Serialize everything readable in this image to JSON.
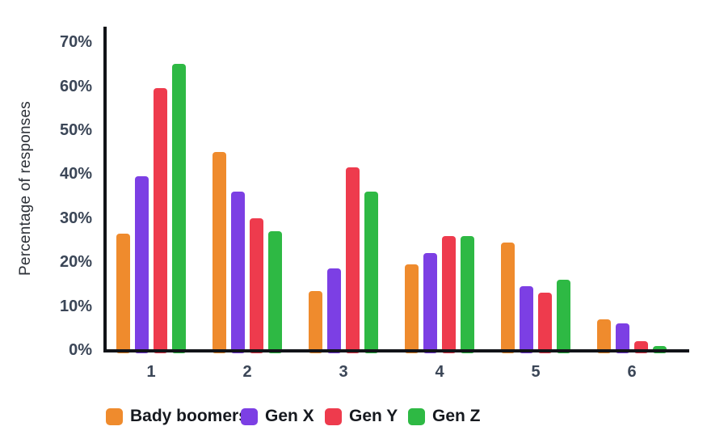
{
  "chart_data": {
    "type": "bar",
    "title": "",
    "xlabel": "",
    "ylabel": "Percentage of responses",
    "categories": [
      "1",
      "2",
      "3",
      "4",
      "5",
      "6"
    ],
    "series": [
      {
        "name": "Bady boomers",
        "color": "#EF8B2D",
        "values": [
          26.5,
          45,
          13.5,
          19.5,
          24.5,
          7
        ]
      },
      {
        "name": "Gen X",
        "color": "#7C3FE4",
        "values": [
          39.5,
          36,
          18.5,
          22,
          14.5,
          6
        ]
      },
      {
        "name": "Gen Y",
        "color": "#EE3B4D",
        "values": [
          59.5,
          30,
          41.5,
          26,
          13,
          2
        ]
      },
      {
        "name": "Gen Z",
        "color": "#2EB944",
        "values": [
          65,
          27,
          36,
          26,
          16,
          1
        ]
      }
    ],
    "yticks": [
      "0%",
      "10%",
      "20%",
      "30%",
      "40%",
      "50%",
      "60%",
      "70%"
    ],
    "ytick_values": [
      0,
      10,
      20,
      30,
      40,
      50,
      60,
      70
    ],
    "ylim": [
      0,
      70
    ],
    "grid": false,
    "legend_position": "bottom",
    "colors": {
      "axis": "#111318",
      "tick_text": "#3b4657",
      "legend_text": "#16191f"
    }
  }
}
